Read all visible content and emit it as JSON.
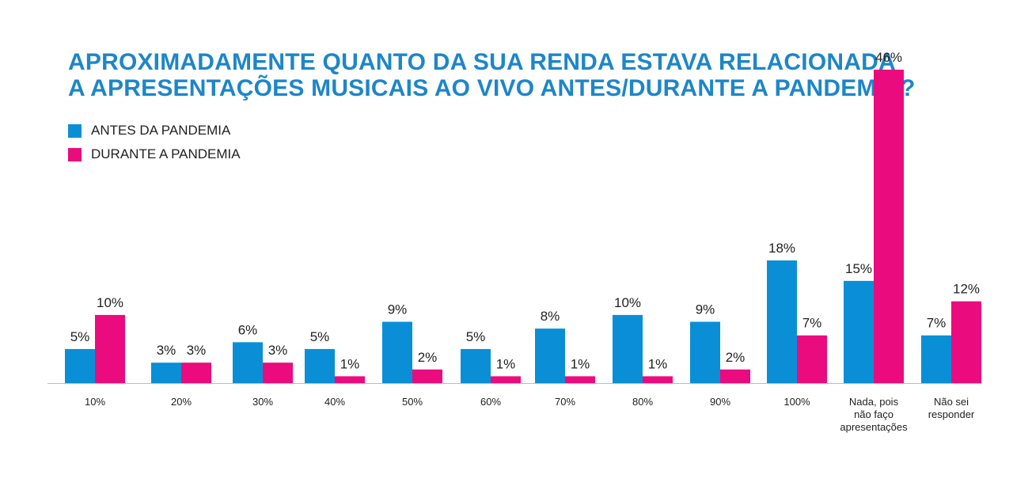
{
  "chart_data": {
    "type": "bar",
    "title_lines": [
      "APROXIMADAMENTE QUANTO DA SUA RENDA ESTAVA RELACIONADA",
      "A APRESENTAÇÕES MUSICAIS AO VIVO ANTES/DURANTE A PANDEMIA?"
    ],
    "categories": [
      "10%",
      "20%",
      "30%",
      "40%",
      "50%",
      "60%",
      "70%",
      "80%",
      "90%",
      "100%",
      "Nada, pois\nnão faço\napresentações",
      "Não sei\nresponder"
    ],
    "series": [
      {
        "name": "ANTES DA PANDEMIA",
        "color": "#0a8fd6",
        "values": [
          5,
          3,
          6,
          5,
          9,
          5,
          8,
          10,
          9,
          18,
          15,
          7
        ],
        "labels": [
          "5%",
          "3%",
          "6%",
          "5%",
          "9%",
          "5%",
          "8%",
          "10%",
          "9%",
          "18%",
          "15%",
          "7%"
        ]
      },
      {
        "name": "DURANTE A PANDEMIA",
        "color": "#ea0b7e",
        "values": [
          10,
          3,
          3,
          1,
          2,
          1,
          1,
          1,
          2,
          7,
          46,
          12
        ],
        "labels": [
          "10%",
          "3%",
          "3%",
          "1%",
          "2%",
          "1%",
          "1%",
          "1%",
          "2%",
          "7%",
          "46%",
          "12%"
        ]
      }
    ],
    "ylim": [
      0,
      46
    ],
    "grid": false,
    "legend_position": "top-left",
    "title_color": "#1d86c8"
  }
}
